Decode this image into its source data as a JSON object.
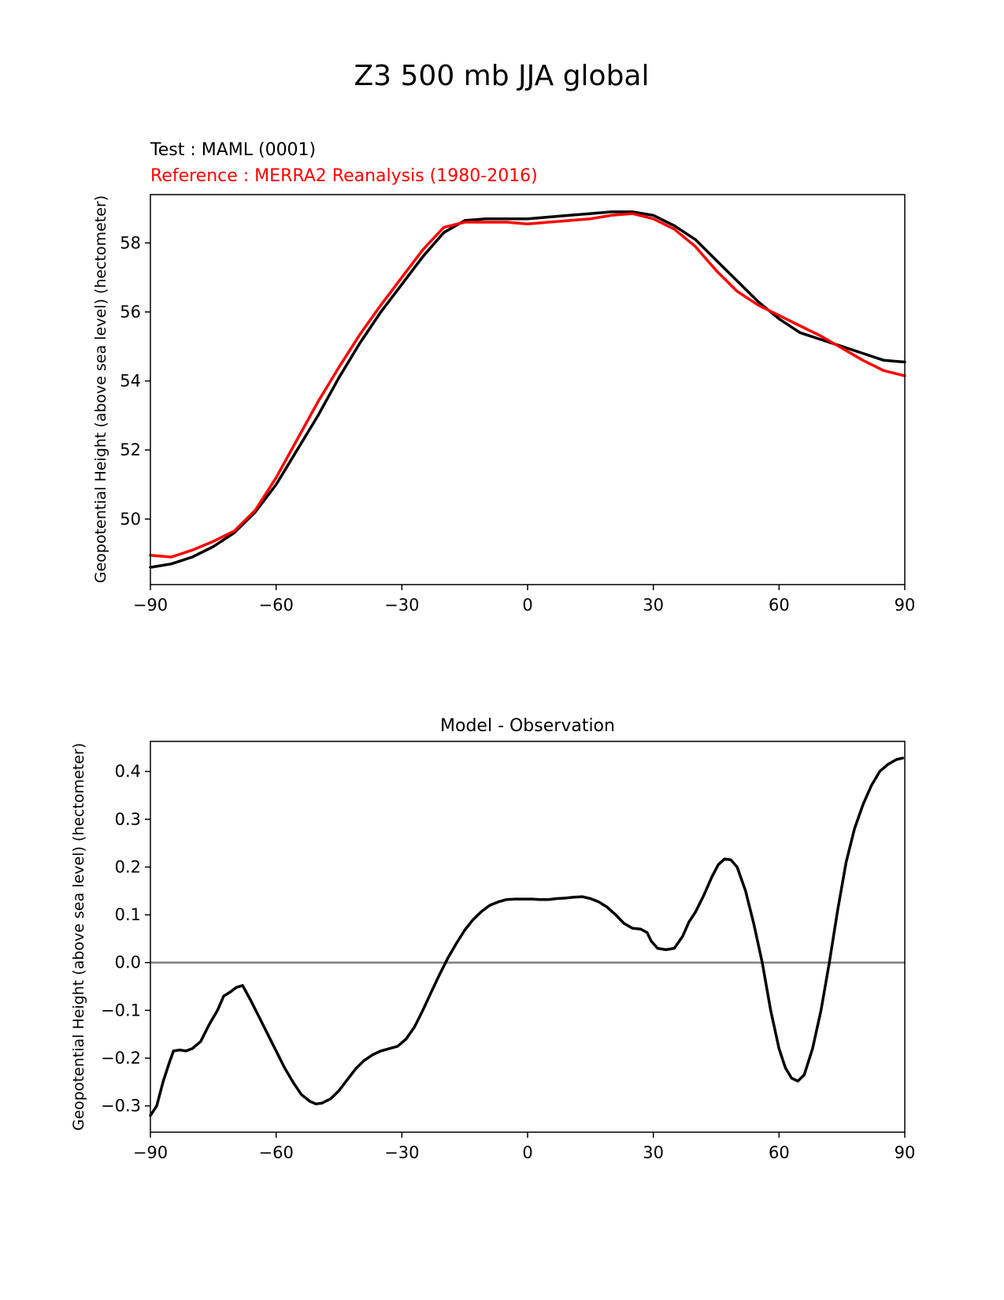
{
  "figure": {
    "title": "Z3 500 mb JJA global"
  },
  "chart_data": [
    {
      "type": "line",
      "title_lines": [
        "Test : MAML (0001)",
        "Reference : MERRA2 Reanalysis (1980-2016)"
      ],
      "xlabel": "",
      "ylabel": "Geopotential Height (above sea level) (hectometer)",
      "xlim": [
        -90,
        90
      ],
      "ylim": [
        48.1,
        59.4
      ],
      "xticks": [
        -90,
        -60,
        -30,
        0,
        30,
        60,
        90
      ],
      "xtick_labels": [
        "−90",
        "−60",
        "−30",
        "0",
        "30",
        "60",
        "90"
      ],
      "yticks": [
        50,
        52,
        54,
        56,
        58
      ],
      "ytick_labels": [
        "50",
        "52",
        "54",
        "56",
        "58"
      ],
      "grid": false,
      "series": [
        {
          "name": "Test : MAML (0001)",
          "color": "#000000",
          "x": [
            -90,
            -85,
            -80,
            -75,
            -70,
            -65,
            -60,
            -55,
            -50,
            -45,
            -40,
            -35,
            -30,
            -25,
            -20,
            -15,
            -10,
            -5,
            0,
            5,
            10,
            15,
            20,
            25,
            30,
            35,
            40,
            45,
            50,
            55,
            60,
            65,
            70,
            75,
            80,
            85,
            90
          ],
          "y": [
            48.6,
            48.7,
            48.9,
            49.2,
            49.6,
            50.2,
            51.0,
            52.0,
            53.0,
            54.1,
            55.1,
            56.0,
            56.8,
            57.6,
            58.3,
            58.65,
            58.7,
            58.7,
            58.7,
            58.75,
            58.8,
            58.85,
            58.9,
            58.9,
            58.8,
            58.5,
            58.1,
            57.5,
            56.9,
            56.3,
            55.8,
            55.4,
            55.2,
            55.0,
            54.8,
            54.6,
            54.55
          ]
        },
        {
          "name": "Reference : MERRA2 Reanalysis (1980-2016)",
          "color": "#ff0000",
          "x": [
            -90,
            -85,
            -80,
            -75,
            -70,
            -65,
            -60,
            -55,
            -50,
            -45,
            -40,
            -35,
            -30,
            -25,
            -20,
            -15,
            -10,
            -5,
            0,
            5,
            10,
            15,
            20,
            25,
            30,
            35,
            40,
            45,
            50,
            55,
            60,
            65,
            70,
            75,
            80,
            85,
            90
          ],
          "y": [
            48.95,
            48.9,
            49.1,
            49.35,
            49.65,
            50.25,
            51.2,
            52.3,
            53.4,
            54.4,
            55.35,
            56.2,
            57.0,
            57.8,
            58.45,
            58.6,
            58.6,
            58.6,
            58.55,
            58.6,
            58.65,
            58.7,
            58.8,
            58.85,
            58.7,
            58.4,
            57.9,
            57.2,
            56.6,
            56.2,
            55.9,
            55.6,
            55.3,
            54.95,
            54.6,
            54.3,
            54.15
          ]
        }
      ]
    },
    {
      "type": "line",
      "title": "Model - Observation",
      "xlabel": "",
      "ylabel": "Geopotential Height (above sea level) (hectometer)",
      "xlim": [
        -90,
        90
      ],
      "ylim": [
        -0.355,
        0.463
      ],
      "xticks": [
        -90,
        -60,
        -30,
        0,
        30,
        60,
        90
      ],
      "xtick_labels": [
        "−90",
        "−60",
        "−30",
        "0",
        "30",
        "60",
        "90"
      ],
      "yticks": [
        -0.3,
        -0.2,
        -0.1,
        0.0,
        0.1,
        0.2,
        0.3,
        0.4
      ],
      "ytick_labels": [
        "−0.3",
        "−0.2",
        "−0.1",
        "0.0",
        "0.1",
        "0.2",
        "0.3",
        "0.4"
      ],
      "grid": false,
      "reference_line": {
        "y": 0.0,
        "color": "#808080"
      },
      "series": [
        {
          "color": "#000000",
          "x": [
            -90,
            -88.5,
            -87,
            -85.5,
            -84.5,
            -83,
            -81.5,
            -80,
            -78,
            -76,
            -74,
            -72.5,
            -71,
            -69.5,
            -68,
            -66,
            -64,
            -62,
            -60,
            -58,
            -56,
            -54,
            -52,
            -50.5,
            -49,
            -47,
            -45,
            -43,
            -41,
            -39,
            -37,
            -35,
            -33,
            -31,
            -29,
            -27,
            -25,
            -23,
            -21,
            -19,
            -17,
            -15,
            -13,
            -11,
            -9,
            -7,
            -5,
            -3,
            -1,
            1,
            3,
            5,
            7,
            9,
            11,
            13,
            15,
            17,
            19,
            21,
            23,
            25,
            27,
            28.5,
            29.5,
            31,
            33,
            35,
            37,
            38.5,
            40,
            42,
            44,
            45.5,
            47,
            48.5,
            50,
            52,
            54,
            56,
            58,
            60,
            61.5,
            63,
            64.5,
            66,
            68,
            70,
            72,
            74,
            76,
            78,
            80,
            82,
            84,
            86,
            88,
            89.5
          ],
          "y": [
            -0.32,
            -0.3,
            -0.25,
            -0.21,
            -0.185,
            -0.183,
            -0.185,
            -0.18,
            -0.165,
            -0.13,
            -0.1,
            -0.07,
            -0.062,
            -0.052,
            -0.048,
            -0.08,
            -0.115,
            -0.15,
            -0.185,
            -0.22,
            -0.25,
            -0.276,
            -0.29,
            -0.296,
            -0.294,
            -0.285,
            -0.268,
            -0.245,
            -0.222,
            -0.205,
            -0.193,
            -0.185,
            -0.18,
            -0.175,
            -0.16,
            -0.135,
            -0.1,
            -0.062,
            -0.025,
            0.01,
            0.04,
            0.068,
            0.09,
            0.107,
            0.12,
            0.127,
            0.132,
            0.133,
            0.133,
            0.133,
            0.132,
            0.132,
            0.134,
            0.135,
            0.137,
            0.138,
            0.134,
            0.127,
            0.116,
            0.1,
            0.082,
            0.072,
            0.07,
            0.063,
            0.045,
            0.03,
            0.027,
            0.03,
            0.055,
            0.085,
            0.105,
            0.14,
            0.18,
            0.205,
            0.217,
            0.215,
            0.2,
            0.15,
            0.08,
            0.0,
            -0.1,
            -0.18,
            -0.22,
            -0.242,
            -0.248,
            -0.235,
            -0.18,
            -0.1,
            0.0,
            0.11,
            0.21,
            0.28,
            0.33,
            0.37,
            0.4,
            0.415,
            0.425,
            0.428
          ]
        }
      ]
    }
  ]
}
